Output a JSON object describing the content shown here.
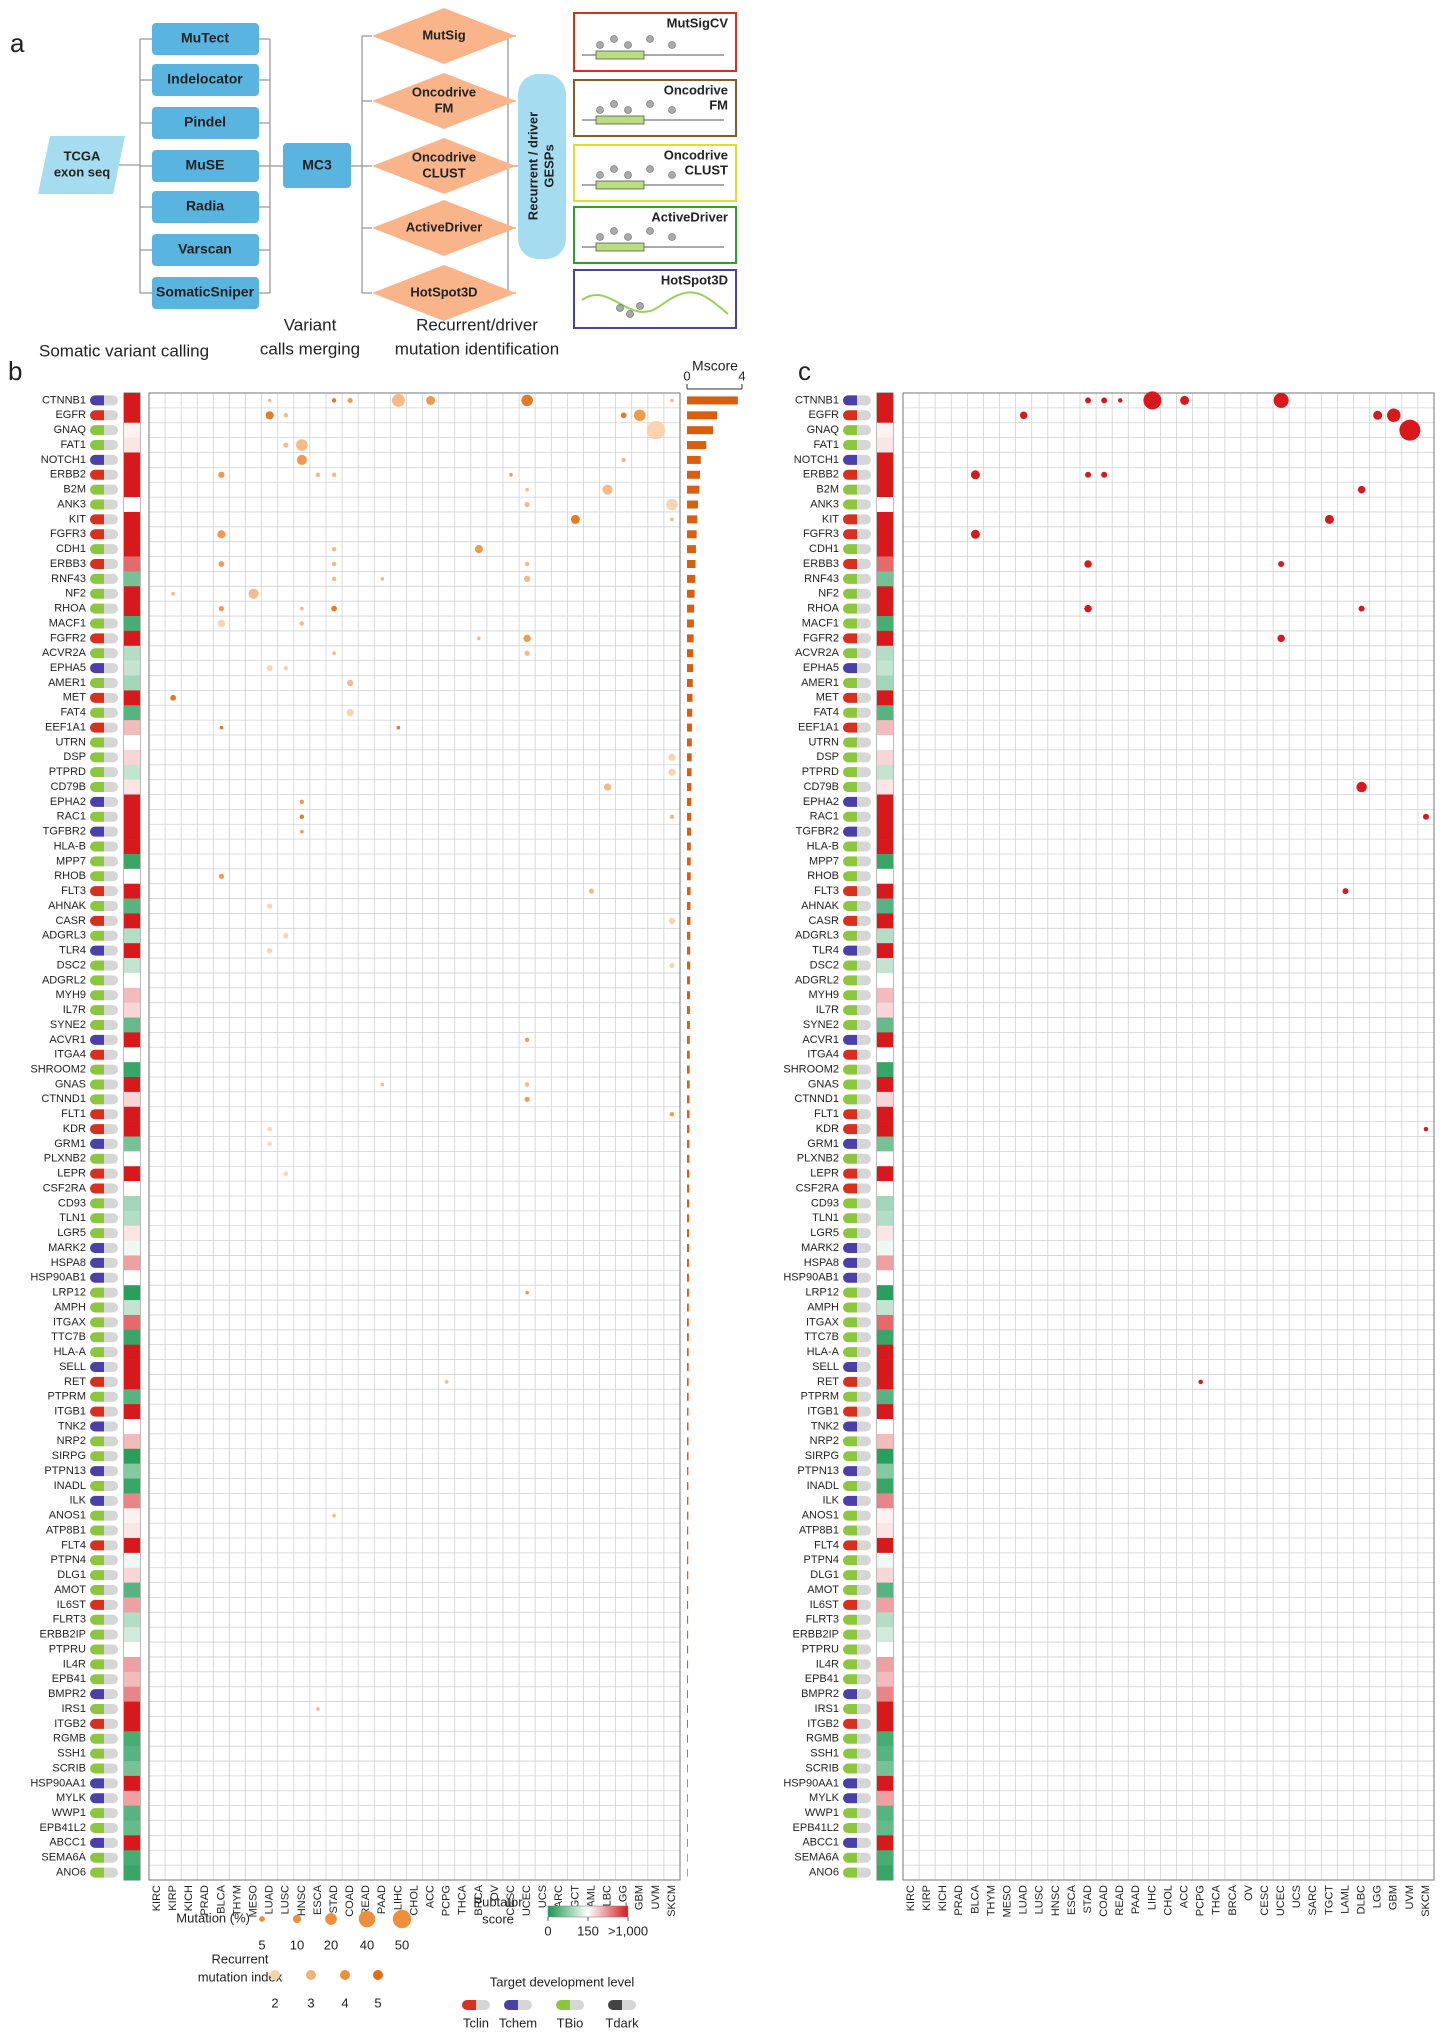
{
  "panel_a": {
    "label": "a",
    "input": [
      "TCGA",
      "exon seq"
    ],
    "callers": [
      "MuTect",
      "Indelocator",
      "Pindel",
      "MuSE",
      "Radia",
      "Varscan",
      "SomaticSniper"
    ],
    "merger": "MC3",
    "identifiers": [
      [
        "MutSig"
      ],
      [
        "Oncodrive",
        "FM"
      ],
      [
        "Oncodrive",
        "CLUST"
      ],
      [
        "ActiveDriver"
      ],
      [
        "HotSpot3D"
      ]
    ],
    "output": [
      "Recurrent / driver",
      "GESPs"
    ],
    "tools": [
      {
        "name": [
          "MutSigCV"
        ],
        "color": "#d7301f"
      },
      {
        "name": [
          "Oncodrive",
          "FM"
        ],
        "color": "#8b5a2b"
      },
      {
        "name": [
          "Oncodrive",
          "CLUST"
        ],
        "color": "#e3dc2c"
      },
      {
        "name": [
          "ActiveDriver"
        ],
        "color": "#2ca02c"
      },
      {
        "name": [
          "HotSpot3D"
        ],
        "color": "#4b3fa8"
      }
    ],
    "steps": [
      [
        "Somatic variant calling"
      ],
      [
        "Variant",
        "calls merging"
      ],
      [
        "Recurrent/driver",
        "mutation identification"
      ]
    ]
  },
  "panel_b": {
    "label": "b",
    "mscore": {
      "title": "Mscore",
      "xlim": [
        0,
        4
      ],
      "xticks": [
        0,
        4
      ],
      "color": "#d95f0e"
    },
    "mutation_legend": {
      "title": "Mutation (%)",
      "sizes": [
        5,
        10,
        20,
        40,
        50
      ]
    },
    "recurrence_legend": {
      "title": [
        "Recurrent",
        "mutation index"
      ],
      "levels": [
        2,
        3,
        4,
        5
      ],
      "colors": [
        "#f8cfa6",
        "#f4b27a",
        "#ef8f3c",
        "#e06d10"
      ]
    }
  },
  "panel_c": {
    "label": "c",
    "color": "#d7191c"
  },
  "cancer_types": [
    "KIRC",
    "KIRP",
    "KICH",
    "PRAD",
    "BLCA",
    "THYM",
    "MESO",
    "LUAD",
    "LUSC",
    "HNSC",
    "ESCA",
    "STAD",
    "COAD",
    "READ",
    "PAAD",
    "LIHC",
    "CHOL",
    "ACC",
    "PCPG",
    "THCA",
    "BRCA",
    "OV",
    "CESC",
    "UCEC",
    "UCS",
    "SARC",
    "TGCT",
    "LAML",
    "DLBC",
    "LGG",
    "GBM",
    "UVM",
    "SKCM"
  ],
  "pubtator_scale": {
    "title": [
      "Pubtator",
      "score"
    ],
    "ticks": [
      0,
      150,
      {
        "value": 1000,
        "label": ">1,000"
      }
    ],
    "colors": [
      "#1a9850",
      "#ffffff",
      "#d7191c"
    ]
  },
  "target_levels": {
    "title": "Target development level",
    "levels": [
      {
        "name": "Tclin",
        "color": "#d7301f"
      },
      {
        "name": "Tchem",
        "color": "#4b3fa8"
      },
      {
        "name": "TBio",
        "color": "#8cc63f"
      },
      {
        "name": "Tdark",
        "color": "#444444"
      }
    ]
  },
  "rows": [
    {
      "gene": "CTNNB1",
      "target": "Tchem",
      "pubtator": 1000,
      "mscore": 3.7,
      "b": {
        "LUAD": [
          2,
          3
        ],
        "STAD": [
          3,
          5
        ],
        "COAD": [
          4,
          4
        ],
        "LIHC": [
          25,
          3
        ],
        "ACC": [
          12,
          4
        ],
        "UCEC": [
          20,
          5
        ],
        "SKCM": [
          2,
          3
        ]
      },
      "c": {
        "LIHC": 12,
        "ACC": 6,
        "UCEC": 10,
        "COAD": 4,
        "STAD": 4,
        "READ": 3
      }
    },
    {
      "gene": "EGFR",
      "target": "Tclin",
      "pubtator": 1000,
      "mscore": 2.2,
      "b": {
        "LUAD": [
          10,
          5
        ],
        "LUSC": [
          3,
          3
        ],
        "LGG": [
          5,
          5
        ],
        "GBM": [
          20,
          4
        ]
      },
      "c": {
        "LUAD": 5,
        "LGG": 6,
        "GBM": 9
      }
    },
    {
      "gene": "GNAQ",
      "target": "TBio",
      "pubtator": 200,
      "mscore": 1.9,
      "b": {
        "UVM": [
          50,
          2
        ]
      },
      "c": {
        "UVM": 14
      }
    },
    {
      "gene": "FAT1",
      "target": "TBio",
      "pubtator": 250,
      "mscore": 1.4,
      "b": {
        "HNSC": [
          20,
          3
        ],
        "LUSC": [
          4,
          3
        ]
      }
    },
    {
      "gene": "NOTCH1",
      "target": "Tchem",
      "pubtator": 1000,
      "mscore": 1.0,
      "b": {
        "HNSC": [
          15,
          4
        ],
        "LGG": [
          3,
          3
        ]
      }
    },
    {
      "gene": "ERBB2",
      "target": "Tclin",
      "pubtator": 1000,
      "mscore": 0.95,
      "b": {
        "BLCA": [
          6,
          4
        ],
        "ESCA": [
          3,
          3
        ],
        "STAD": [
          3,
          3
        ],
        "CESC": [
          2,
          4
        ]
      },
      "c": {
        "BLCA": 6,
        "STAD": 4,
        "COAD": 4
      }
    },
    {
      "gene": "B2M",
      "target": "TBio",
      "pubtator": 1000,
      "mscore": 0.9,
      "b": {
        "DLBC": [
          15,
          3
        ],
        "UCEC": [
          2,
          3
        ]
      },
      "c": {
        "DLBC": 5
      }
    },
    {
      "gene": "ANK3",
      "target": "TBio",
      "pubtator": 150,
      "mscore": 0.8,
      "b": {
        "SKCM": [
          20,
          2
        ],
        "UCEC": [
          4,
          3
        ]
      }
    },
    {
      "gene": "KIT",
      "target": "Tclin",
      "pubtator": 1000,
      "mscore": 0.75,
      "b": {
        "TGCT": [
          12,
          5
        ],
        "SKCM": [
          2,
          3
        ]
      },
      "c": {
        "TGCT": 6
      }
    },
    {
      "gene": "FGFR3",
      "target": "Tclin",
      "pubtator": 1000,
      "mscore": 0.7,
      "b": {
        "BLCA": [
          10,
          4
        ]
      },
      "c": {
        "BLCA": 6
      }
    },
    {
      "gene": "CDH1",
      "target": "TBio",
      "pubtator": 1000,
      "mscore": 0.65,
      "b": {
        "BRCA": [
          10,
          4
        ],
        "STAD": [
          3,
          3
        ]
      }
    },
    {
      "gene": "ERBB3",
      "target": "Tclin",
      "pubtator": 700,
      "mscore": 0.62,
      "b": {
        "BLCA": [
          5,
          4
        ],
        "STAD": [
          3,
          3
        ],
        "UCEC": [
          3,
          3
        ]
      },
      "c": {
        "STAD": 5,
        "UCEC": 4
      }
    },
    {
      "gene": "RNF43",
      "target": "TBio",
      "pubtator": 60,
      "mscore": 0.6,
      "b": {
        "UCEC": [
          6,
          3
        ],
        "STAD": [
          3,
          3
        ],
        "PAAD": [
          2,
          3
        ]
      }
    },
    {
      "gene": "NF2",
      "target": "TBio",
      "pubtator": 1000,
      "mscore": 0.55,
      "b": {
        "MESO": [
          15,
          3
        ],
        "KIRP": [
          2,
          3
        ]
      }
    },
    {
      "gene": "RHOA",
      "target": "TBio",
      "pubtator": 1000,
      "mscore": 0.52,
      "b": {
        "BLCA": [
          4,
          4
        ],
        "STAD": [
          5,
          5
        ],
        "HNSC": [
          2,
          3
        ]
      },
      "c": {
        "STAD": 5,
        "DLBC": 4
      }
    },
    {
      "gene": "MACF1",
      "target": "TBio",
      "pubtator": 30,
      "mscore": 0.5,
      "b": {
        "BLCA": [
          8,
          2
        ],
        "HNSC": [
          3,
          3
        ]
      }
    },
    {
      "gene": "FGFR2",
      "target": "Tclin",
      "pubtator": 1000,
      "mscore": 0.48,
      "b": {
        "UCEC": [
          8,
          4
        ],
        "BRCA": [
          2,
          3
        ]
      },
      "c": {
        "UCEC": 5
      }
    },
    {
      "gene": "ACVR2A",
      "target": "TBio",
      "pubtator": 100,
      "mscore": 0.46,
      "b": {
        "UCEC": [
          4,
          3
        ],
        "STAD": [
          2,
          3
        ]
      }
    },
    {
      "gene": "EPHA5",
      "target": "Tchem",
      "pubtator": 110,
      "mscore": 0.44,
      "b": {
        "LUAD": [
          5,
          2
        ],
        "LUSC": [
          3,
          2
        ]
      }
    },
    {
      "gene": "AMER1",
      "target": "TBio",
      "pubtator": 90,
      "mscore": 0.42,
      "b": {
        "COAD": [
          6,
          3
        ]
      }
    },
    {
      "gene": "MET",
      "target": "Tclin",
      "pubtator": 1000,
      "mscore": 0.4,
      "b": {
        "KIRP": [
          5,
          5
        ]
      }
    },
    {
      "gene": "FAT4",
      "target": "TBio",
      "pubtator": 40,
      "mscore": 0.38,
      "b": {
        "COAD": [
          8,
          2
        ]
      }
    },
    {
      "gene": "EEF1A1",
      "target": "Tclin",
      "pubtator": 400,
      "mscore": 0.36,
      "b": {
        "BLCA": [
          2,
          5
        ],
        "LIHC": [
          2,
          5
        ]
      }
    },
    {
      "gene": "UTRN",
      "target": "TBio",
      "pubtator": 150,
      "mscore": 0.35
    },
    {
      "gene": "DSP",
      "target": "TBio",
      "pubtator": 300,
      "mscore": 0.34,
      "b": {
        "SKCM": [
          8,
          2
        ]
      }
    },
    {
      "gene": "PTPRD",
      "target": "TBio",
      "pubtator": 110,
      "mscore": 0.33,
      "b": {
        "SKCM": [
          8,
          2
        ]
      }
    },
    {
      "gene": "CD79B",
      "target": "TBio",
      "pubtator": 250,
      "mscore": 0.32,
      "b": {
        "DLBC": [
          8,
          3
        ]
      },
      "c": {
        "DLBC": 7
      }
    },
    {
      "gene": "EPHA2",
      "target": "Tchem",
      "pubtator": 1000,
      "mscore": 0.31,
      "b": {
        "HNSC": [
          3,
          4
        ]
      }
    },
    {
      "gene": "RAC1",
      "target": "TBio",
      "pubtator": 1000,
      "mscore": 0.3,
      "b": {
        "HNSC": [
          3,
          5
        ],
        "SKCM": [
          3,
          3
        ]
      },
      "c": {
        "SKCM": 4
      }
    },
    {
      "gene": "TGFBR2",
      "target": "Tchem",
      "pubtator": 1000,
      "mscore": 0.29,
      "b": {
        "HNSC": [
          2,
          4
        ]
      }
    },
    {
      "gene": "HLA-B",
      "target": "TBio",
      "pubtator": 1000,
      "mscore": 0.28
    },
    {
      "gene": "MPP7",
      "target": "TBio",
      "pubtator": 20,
      "mscore": 0.27
    },
    {
      "gene": "RHOB",
      "target": "TBio",
      "pubtator": 160,
      "mscore": 0.27,
      "b": {
        "BLCA": [
          4,
          4
        ]
      }
    },
    {
      "gene": "FLT3",
      "target": "Tclin",
      "pubtator": 1000,
      "mscore": 0.26,
      "b": {
        "LAML": [
          4,
          3
        ]
      },
      "c": {
        "LAML": 4
      }
    },
    {
      "gene": "AHNAK",
      "target": "TBio",
      "pubtator": 40,
      "mscore": 0.25,
      "b": {
        "LUAD": [
          4,
          2
        ]
      }
    },
    {
      "gene": "CASR",
      "target": "Tclin",
      "pubtator": 1000,
      "mscore": 0.25,
      "b": {
        "SKCM": [
          6,
          2
        ]
      }
    },
    {
      "gene": "ADGRL3",
      "target": "TBio",
      "pubtator": 100,
      "mscore": 0.24,
      "b": {
        "LUSC": [
          4,
          2
        ]
      }
    },
    {
      "gene": "TLR4",
      "target": "Tchem",
      "pubtator": 1000,
      "mscore": 0.23,
      "b": {
        "LUAD": [
          4,
          2
        ]
      }
    },
    {
      "gene": "DSC2",
      "target": "TBio",
      "pubtator": 110,
      "mscore": 0.23,
      "b": {
        "SKCM": [
          4,
          2
        ]
      }
    },
    {
      "gene": "ADGRL2",
      "target": "TBio",
      "pubtator": 150,
      "mscore": 0.22
    },
    {
      "gene": "MYH9",
      "target": "TBio",
      "pubtator": 400,
      "mscore": 0.22
    },
    {
      "gene": "IL7R",
      "target": "TBio",
      "pubtator": 300,
      "mscore": 0.21
    },
    {
      "gene": "SYNE2",
      "target": "TBio",
      "pubtator": 50,
      "mscore": 0.21
    },
    {
      "gene": "ACVR1",
      "target": "Tchem",
      "pubtator": 1000,
      "mscore": 0.2,
      "b": {
        "UCEC": [
          3,
          4
        ]
      }
    },
    {
      "gene": "ITGA4",
      "target": "Tclin",
      "pubtator": 150,
      "mscore": 0.2
    },
    {
      "gene": "SHROOM2",
      "target": "TBio",
      "pubtator": 20,
      "mscore": 0.19
    },
    {
      "gene": "GNAS",
      "target": "TBio",
      "pubtator": 1000,
      "mscore": 0.19,
      "b": {
        "PAAD": [
          2,
          3
        ],
        "UCEC": [
          3,
          3
        ]
      }
    },
    {
      "gene": "CTNND1",
      "target": "TBio",
      "pubtator": 300,
      "mscore": 0.18,
      "b": {
        "UCEC": [
          4,
          4
        ]
      }
    },
    {
      "gene": "FLT1",
      "target": "Tclin",
      "pubtator": 1000,
      "mscore": 0.18,
      "b": {
        "SKCM": [
          3,
          4
        ]
      }
    },
    {
      "gene": "KDR",
      "target": "Tclin",
      "pubtator": 1000,
      "mscore": 0.17,
      "b": {
        "LUAD": [
          3,
          2
        ]
      },
      "c": {
        "SKCM": 3
      }
    },
    {
      "gene": "GRM1",
      "target": "Tchem",
      "pubtator": 60,
      "mscore": 0.17,
      "b": {
        "LUAD": [
          3,
          2
        ]
      }
    },
    {
      "gene": "PLXNB2",
      "target": "TBio",
      "pubtator": 150,
      "mscore": 0.17
    },
    {
      "gene": "LEPR",
      "target": "Tclin",
      "pubtator": 1000,
      "mscore": 0.16,
      "b": {
        "LUSC": [
          3,
          2
        ]
      }
    },
    {
      "gene": "CSF2RA",
      "target": "Tclin",
      "pubtator": 160,
      "mscore": 0.16
    },
    {
      "gene": "CD93",
      "target": "TBio",
      "pubtator": 90,
      "mscore": 0.16
    },
    {
      "gene": "TLN1",
      "target": "TBio",
      "pubtator": 100,
      "mscore": 0.15
    },
    {
      "gene": "LGR5",
      "target": "TBio",
      "pubtator": 250,
      "mscore": 0.15
    },
    {
      "gene": "MARK2",
      "target": "Tchem",
      "pubtator": 140,
      "mscore": 0.15
    },
    {
      "gene": "HSPA8",
      "target": "Tchem",
      "pubtator": 500,
      "mscore": 0.14
    },
    {
      "gene": "HSP90AB1",
      "target": "Tchem",
      "pubtator": 150,
      "mscore": 0.14
    },
    {
      "gene": "LRP12",
      "target": "TBio",
      "pubtator": 10,
      "mscore": 0.14,
      "b": {
        "UCEC": [
          2,
          4
        ]
      }
    },
    {
      "gene": "AMPH",
      "target": "TBio",
      "pubtator": 110,
      "mscore": 0.13
    },
    {
      "gene": "ITGAX",
      "target": "TBio",
      "pubtator": 700,
      "mscore": 0.13
    },
    {
      "gene": "TTC7B",
      "target": "TBio",
      "pubtator": 20,
      "mscore": 0.13
    },
    {
      "gene": "HLA-A",
      "target": "TBio",
      "pubtator": 1000,
      "mscore": 0.12
    },
    {
      "gene": "SELL",
      "target": "Tchem",
      "pubtator": 1000,
      "mscore": 0.12
    },
    {
      "gene": "RET",
      "target": "Tclin",
      "pubtator": 1000,
      "mscore": 0.12,
      "b": {
        "PCPG": [
          2,
          3
        ]
      },
      "c": {
        "PCPG": 3
      }
    },
    {
      "gene": "PTPRM",
      "target": "TBio",
      "pubtator": 40,
      "mscore": 0.12
    },
    {
      "gene": "ITGB1",
      "target": "Tclin",
      "pubtator": 1000,
      "mscore": 0.11
    },
    {
      "gene": "TNK2",
      "target": "Tchem",
      "pubtator": 150,
      "mscore": 0.11
    },
    {
      "gene": "NRP2",
      "target": "TBio",
      "pubtator": 400,
      "mscore": 0.11
    },
    {
      "gene": "SIRPG",
      "target": "TBio",
      "pubtator": 10,
      "mscore": 0.11
    },
    {
      "gene": "PTPN13",
      "target": "Tchem",
      "pubtator": 70,
      "mscore": 0.1
    },
    {
      "gene": "INADL",
      "target": "TBio",
      "pubtator": 20,
      "mscore": 0.1
    },
    {
      "gene": "ILK",
      "target": "Tchem",
      "pubtator": 600,
      "mscore": 0.1
    },
    {
      "gene": "ANOS1",
      "target": "TBio",
      "pubtator": 200,
      "mscore": 0.1,
      "b": {
        "STAD": [
          2,
          3
        ]
      }
    },
    {
      "gene": "ATP8B1",
      "target": "TBio",
      "pubtator": 250,
      "mscore": 0.09
    },
    {
      "gene": "FLT4",
      "target": "Tclin",
      "pubtator": 1000,
      "mscore": 0.09
    },
    {
      "gene": "PTPN4",
      "target": "TBio",
      "pubtator": 140,
      "mscore": 0.09
    },
    {
      "gene": "DLG1",
      "target": "TBio",
      "pubtator": 300,
      "mscore": 0.09
    },
    {
      "gene": "AMOT",
      "target": "TBio",
      "pubtator": 40,
      "mscore": 0.09
    },
    {
      "gene": "IL6ST",
      "target": "Tclin",
      "pubtator": 500,
      "mscore": 0.08
    },
    {
      "gene": "FLRT3",
      "target": "TBio",
      "pubtator": 100,
      "mscore": 0.08
    },
    {
      "gene": "ERBB2IP",
      "target": "TBio",
      "pubtator": 120,
      "mscore": 0.08
    },
    {
      "gene": "PTPRU",
      "target": "TBio",
      "pubtator": 150,
      "mscore": 0.08
    },
    {
      "gene": "IL4R",
      "target": "TBio",
      "pubtator": 500,
      "mscore": 0.08
    },
    {
      "gene": "EPB41",
      "target": "TBio",
      "pubtator": 400,
      "mscore": 0.07
    },
    {
      "gene": "BMPR2",
      "target": "Tchem",
      "pubtator": 600,
      "mscore": 0.07
    },
    {
      "gene": "IRS1",
      "target": "TBio",
      "pubtator": 1000,
      "mscore": 0.07,
      "b": {
        "ESCA": [
          2,
          3
        ]
      }
    },
    {
      "gene": "ITGB2",
      "target": "Tclin",
      "pubtator": 1000,
      "mscore": 0.07
    },
    {
      "gene": "RGMB",
      "target": "TBio",
      "pubtator": 30,
      "mscore": 0.07
    },
    {
      "gene": "SSH1",
      "target": "TBio",
      "pubtator": 40,
      "mscore": 0.07
    },
    {
      "gene": "SCRIB",
      "target": "TBio",
      "pubtator": 60,
      "mscore": 0.06
    },
    {
      "gene": "HSP90AA1",
      "target": "Tchem",
      "pubtator": 1000,
      "mscore": 0.06
    },
    {
      "gene": "MYLK",
      "target": "Tchem",
      "pubtator": 500,
      "mscore": 0.06
    },
    {
      "gene": "WWP1",
      "target": "TBio",
      "pubtator": 40,
      "mscore": 0.06
    },
    {
      "gene": "EPB41L2",
      "target": "TBio",
      "pubtator": 50,
      "mscore": 0.06
    },
    {
      "gene": "ABCC1",
      "target": "Tchem",
      "pubtator": 1000,
      "mscore": 0.06
    },
    {
      "gene": "SEMA6A",
      "target": "TBio",
      "pubtator": 30,
      "mscore": 0.05
    },
    {
      "gene": "ANO6",
      "target": "TBio",
      "pubtator": 20,
      "mscore": 0.05
    }
  ]
}
